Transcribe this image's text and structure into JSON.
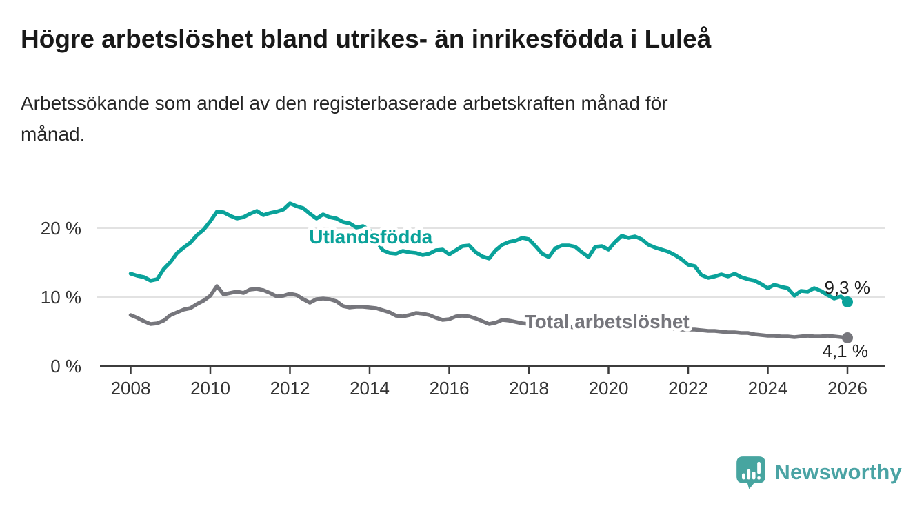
{
  "header": {
    "title": "Högre arbetslöshet bland utrikes- än inrikesfödda i Luleå",
    "subtitle": "Arbetssökande som andel av den registerbaserade arbetskraften månad för\nmånad."
  },
  "chart_data": {
    "type": "line",
    "title": "Högre arbetslöshet bland utrikes- än inrikesfödda i Luleå",
    "subtitle": "Arbetssökande som andel av den registerbaserade arbetskraften månad för månad.",
    "x_unit": "year",
    "x_start": 2008.0,
    "points_per_year": 6,
    "x_axis": {
      "ticks": [
        2008,
        2010,
        2012,
        2014,
        2016,
        2018,
        2020,
        2022,
        2024,
        2026
      ]
    },
    "y_axis": {
      "unit": "%",
      "ylim": [
        0,
        25
      ],
      "gridlines": [
        10,
        20
      ],
      "ticks": [
        {
          "value": 0,
          "label": "0 %"
        },
        {
          "value": 10,
          "label": "10 %"
        },
        {
          "value": 20,
          "label": "20 %"
        }
      ]
    },
    "legend_position": "inline-labels",
    "grid": true,
    "series": [
      {
        "name": "Utlandsfödda",
        "color": "#0aa29a",
        "label_x": 2014.03,
        "label_y": 17.8,
        "end_label": "9,3 %",
        "end_value": 9.3,
        "end_label_position": "above",
        "values": [
          13.4,
          13.1,
          12.9,
          12.4,
          12.6,
          14.1,
          15.1,
          16.4,
          17.2,
          17.9,
          19.0,
          19.8,
          21.0,
          22.4,
          22.3,
          21.8,
          21.4,
          21.6,
          22.1,
          22.5,
          21.9,
          22.2,
          22.4,
          22.7,
          23.6,
          23.2,
          22.9,
          22.1,
          21.4,
          22.0,
          21.6,
          21.4,
          20.9,
          20.7,
          20.1,
          20.3,
          19.7,
          18.2,
          16.8,
          16.4,
          16.3,
          16.7,
          16.5,
          16.4,
          16.1,
          16.3,
          16.8,
          16.9,
          16.2,
          16.8,
          17.4,
          17.5,
          16.5,
          15.9,
          15.6,
          16.8,
          17.6,
          18.0,
          18.2,
          18.6,
          18.4,
          17.4,
          16.3,
          15.8,
          17.1,
          17.5,
          17.5,
          17.3,
          16.5,
          15.8,
          17.3,
          17.4,
          16.9,
          18.0,
          18.9,
          18.6,
          18.8,
          18.4,
          17.6,
          17.2,
          16.9,
          16.6,
          16.1,
          15.5,
          14.7,
          14.5,
          13.2,
          12.8,
          13.0,
          13.3,
          13.0,
          13.4,
          12.9,
          12.6,
          12.4,
          11.9,
          11.3,
          11.8,
          11.5,
          11.3,
          10.2,
          10.9,
          10.8,
          11.3,
          10.9,
          10.3,
          9.8,
          10.1,
          9.3
        ]
      },
      {
        "name": "Total arbetslöshet",
        "color": "#76767c",
        "label_x": 2019.96,
        "label_y": 5.5,
        "end_label": "4,1 %",
        "end_value": 4.1,
        "end_label_position": "below",
        "values": [
          7.4,
          7.0,
          6.5,
          6.1,
          6.2,
          6.6,
          7.4,
          7.8,
          8.2,
          8.4,
          9.0,
          9.5,
          10.2,
          11.6,
          10.4,
          10.6,
          10.8,
          10.6,
          11.1,
          11.2,
          11.0,
          10.6,
          10.1,
          10.2,
          10.5,
          10.3,
          9.7,
          9.2,
          9.7,
          9.8,
          9.7,
          9.4,
          8.7,
          8.5,
          8.6,
          8.6,
          8.5,
          8.4,
          8.1,
          7.8,
          7.3,
          7.2,
          7.4,
          7.7,
          7.6,
          7.4,
          7.0,
          6.7,
          6.8,
          7.2,
          7.3,
          7.2,
          6.9,
          6.5,
          6.1,
          6.3,
          6.7,
          6.6,
          6.4,
          6.2,
          6.1,
          5.9,
          5.8,
          5.9,
          5.8,
          5.7,
          5.7,
          5.6,
          5.5,
          5.6,
          5.6,
          5.7,
          5.8,
          6.0,
          6.2,
          6.1,
          6.0,
          5.9,
          5.8,
          5.7,
          5.6,
          5.5,
          5.4,
          5.3,
          5.3,
          5.3,
          5.2,
          5.1,
          5.1,
          5.0,
          4.9,
          4.9,
          4.8,
          4.8,
          4.6,
          4.5,
          4.4,
          4.4,
          4.3,
          4.3,
          4.2,
          4.3,
          4.4,
          4.3,
          4.3,
          4.4,
          4.3,
          4.2,
          4.1
        ]
      }
    ]
  },
  "footer": {
    "brand": "Newsworthy"
  },
  "colors": {
    "background": "#ffffff",
    "title": "#191919",
    "subtitle": "#252525",
    "axis": "#3c3c3c",
    "tick_text": "#333333",
    "gridline": "#d9d9d9",
    "teal": "#0aa29a",
    "gray": "#76767c",
    "end_label_text": "#1f1f1f",
    "logo_icon": "#47a5a0",
    "logo_text": "#4aa3a4"
  }
}
